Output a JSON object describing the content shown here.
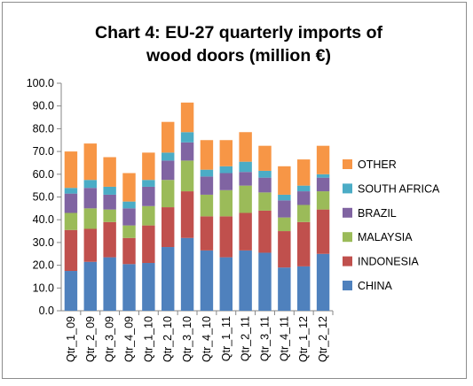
{
  "chart_data": {
    "type": "bar",
    "stacked": true,
    "title_line1": "Chart 4: EU-27 quarterly imports of",
    "title_line2": "wood doors (million €)",
    "xlabel": "",
    "ylabel": "",
    "ylim": [
      0,
      100
    ],
    "y_ticks": [
      "0.0",
      "10.0",
      "20.0",
      "30.0",
      "40.0",
      "50.0",
      "60.0",
      "70.0",
      "80.0",
      "90.0",
      "100.0"
    ],
    "grid": false,
    "legend_position": "right",
    "categories": [
      "Qtr_1_09",
      "Qtr_2_09",
      "Qtr_3_09",
      "Qtr_4_09",
      "Qtr_1_10",
      "Qtr_2_10",
      "Qtr_3_10",
      "Qtr_4_10",
      "Qtr_1_11",
      "Qtr_2_11",
      "Qtr_3_11",
      "Qtr_4_11",
      "Qtr_1_12",
      "Qtr_2_12"
    ],
    "series": [
      {
        "name": "CHINA",
        "color": "#4f81bd",
        "values": [
          17.5,
          21.5,
          23.5,
          20.5,
          21.0,
          28.0,
          32.0,
          26.5,
          23.5,
          26.5,
          25.5,
          19.0,
          19.5,
          25.0
        ]
      },
      {
        "name": "INDONESIA",
        "color": "#c0504d",
        "values": [
          18.0,
          14.5,
          15.5,
          11.5,
          16.5,
          17.5,
          20.5,
          15.0,
          18.0,
          16.5,
          18.5,
          16.0,
          19.5,
          19.5
        ]
      },
      {
        "name": "MALAYSIA",
        "color": "#9bbb59",
        "values": [
          7.5,
          9.0,
          5.5,
          5.5,
          8.5,
          12.0,
          13.5,
          9.5,
          11.5,
          12.0,
          8.0,
          6.0,
          7.5,
          8.0
        ]
      },
      {
        "name": "BRAZIL",
        "color": "#8064a2",
        "values": [
          8.5,
          9.0,
          6.5,
          7.5,
          8.5,
          8.5,
          8.0,
          8.0,
          7.5,
          6.0,
          6.5,
          7.5,
          6.0,
          6.0
        ]
      },
      {
        "name": "SOUTH AFRICA",
        "color": "#4bacc6",
        "values": [
          2.5,
          3.5,
          3.5,
          3.0,
          3.0,
          3.5,
          4.5,
          3.0,
          3.0,
          4.5,
          3.0,
          2.5,
          2.5,
          1.5
        ]
      },
      {
        "name": "OTHER",
        "color": "#f79646",
        "values": [
          16.0,
          16.0,
          13.0,
          12.5,
          12.0,
          13.5,
          13.0,
          13.0,
          11.5,
          13.0,
          11.0,
          12.5,
          11.5,
          12.5
        ]
      }
    ]
  }
}
